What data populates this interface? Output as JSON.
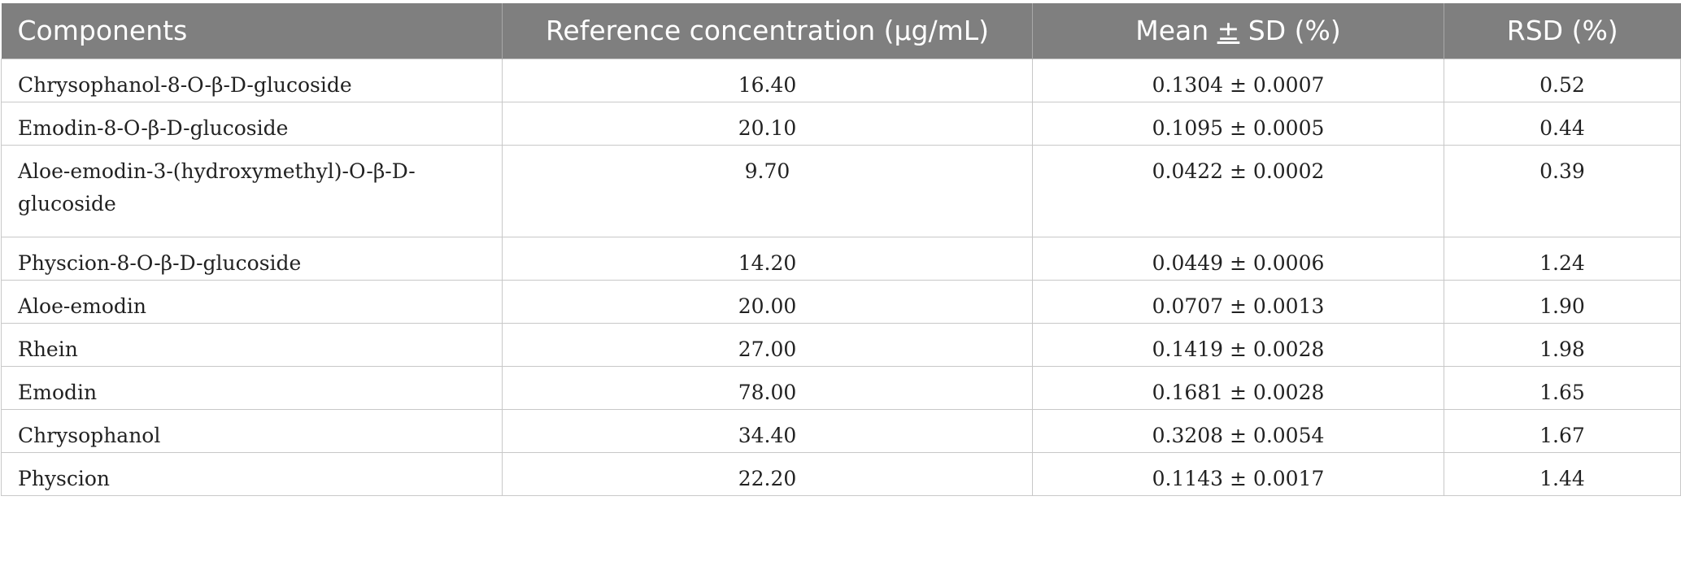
{
  "table": {
    "headers": {
      "components": "Components",
      "ref_conc": "Reference concentration (µg/mL)",
      "mean_sd_prefix": "Mean ",
      "mean_sd_symbol": "±",
      "mean_sd_suffix": " SD (%)",
      "rsd": "RSD (%)"
    },
    "rows": [
      {
        "component": "Chrysophanol-8-O-β-D-glucoside",
        "ref_conc": "16.40",
        "mean_sd": "0.1304 ± 0.0007",
        "rsd": "0.52"
      },
      {
        "component": "Emodin-8-O-β-D-glucoside",
        "ref_conc": "20.10",
        "mean_sd": "0.1095 ± 0.0005",
        "rsd": "0.44"
      },
      {
        "component": "Aloe-emodin-3-(hydroxymethyl)-O-β-D-glucoside",
        "ref_conc": "9.70",
        "mean_sd": "0.0422 ± 0.0002",
        "rsd": "0.39"
      },
      {
        "component": "Physcion-8-O-β-D-glucoside",
        "ref_conc": "14.20",
        "mean_sd": "0.0449 ± 0.0006",
        "rsd": "1.24"
      },
      {
        "component": "Aloe-emodin",
        "ref_conc": "20.00",
        "mean_sd": "0.0707 ± 0.0013",
        "rsd": "1.90"
      },
      {
        "component": "Rhein",
        "ref_conc": "27.00",
        "mean_sd": "0.1419 ± 0.0028",
        "rsd": "1.98"
      },
      {
        "component": "Emodin",
        "ref_conc": "78.00",
        "mean_sd": "0.1681 ± 0.0028",
        "rsd": "1.65"
      },
      {
        "component": "Chrysophanol",
        "ref_conc": "34.40",
        "mean_sd": "0.3208 ± 0.0054",
        "rsd": "1.67"
      },
      {
        "component": "Physcion",
        "ref_conc": "22.20",
        "mean_sd": "0.1143 ± 0.0017",
        "rsd": "1.44"
      }
    ]
  }
}
